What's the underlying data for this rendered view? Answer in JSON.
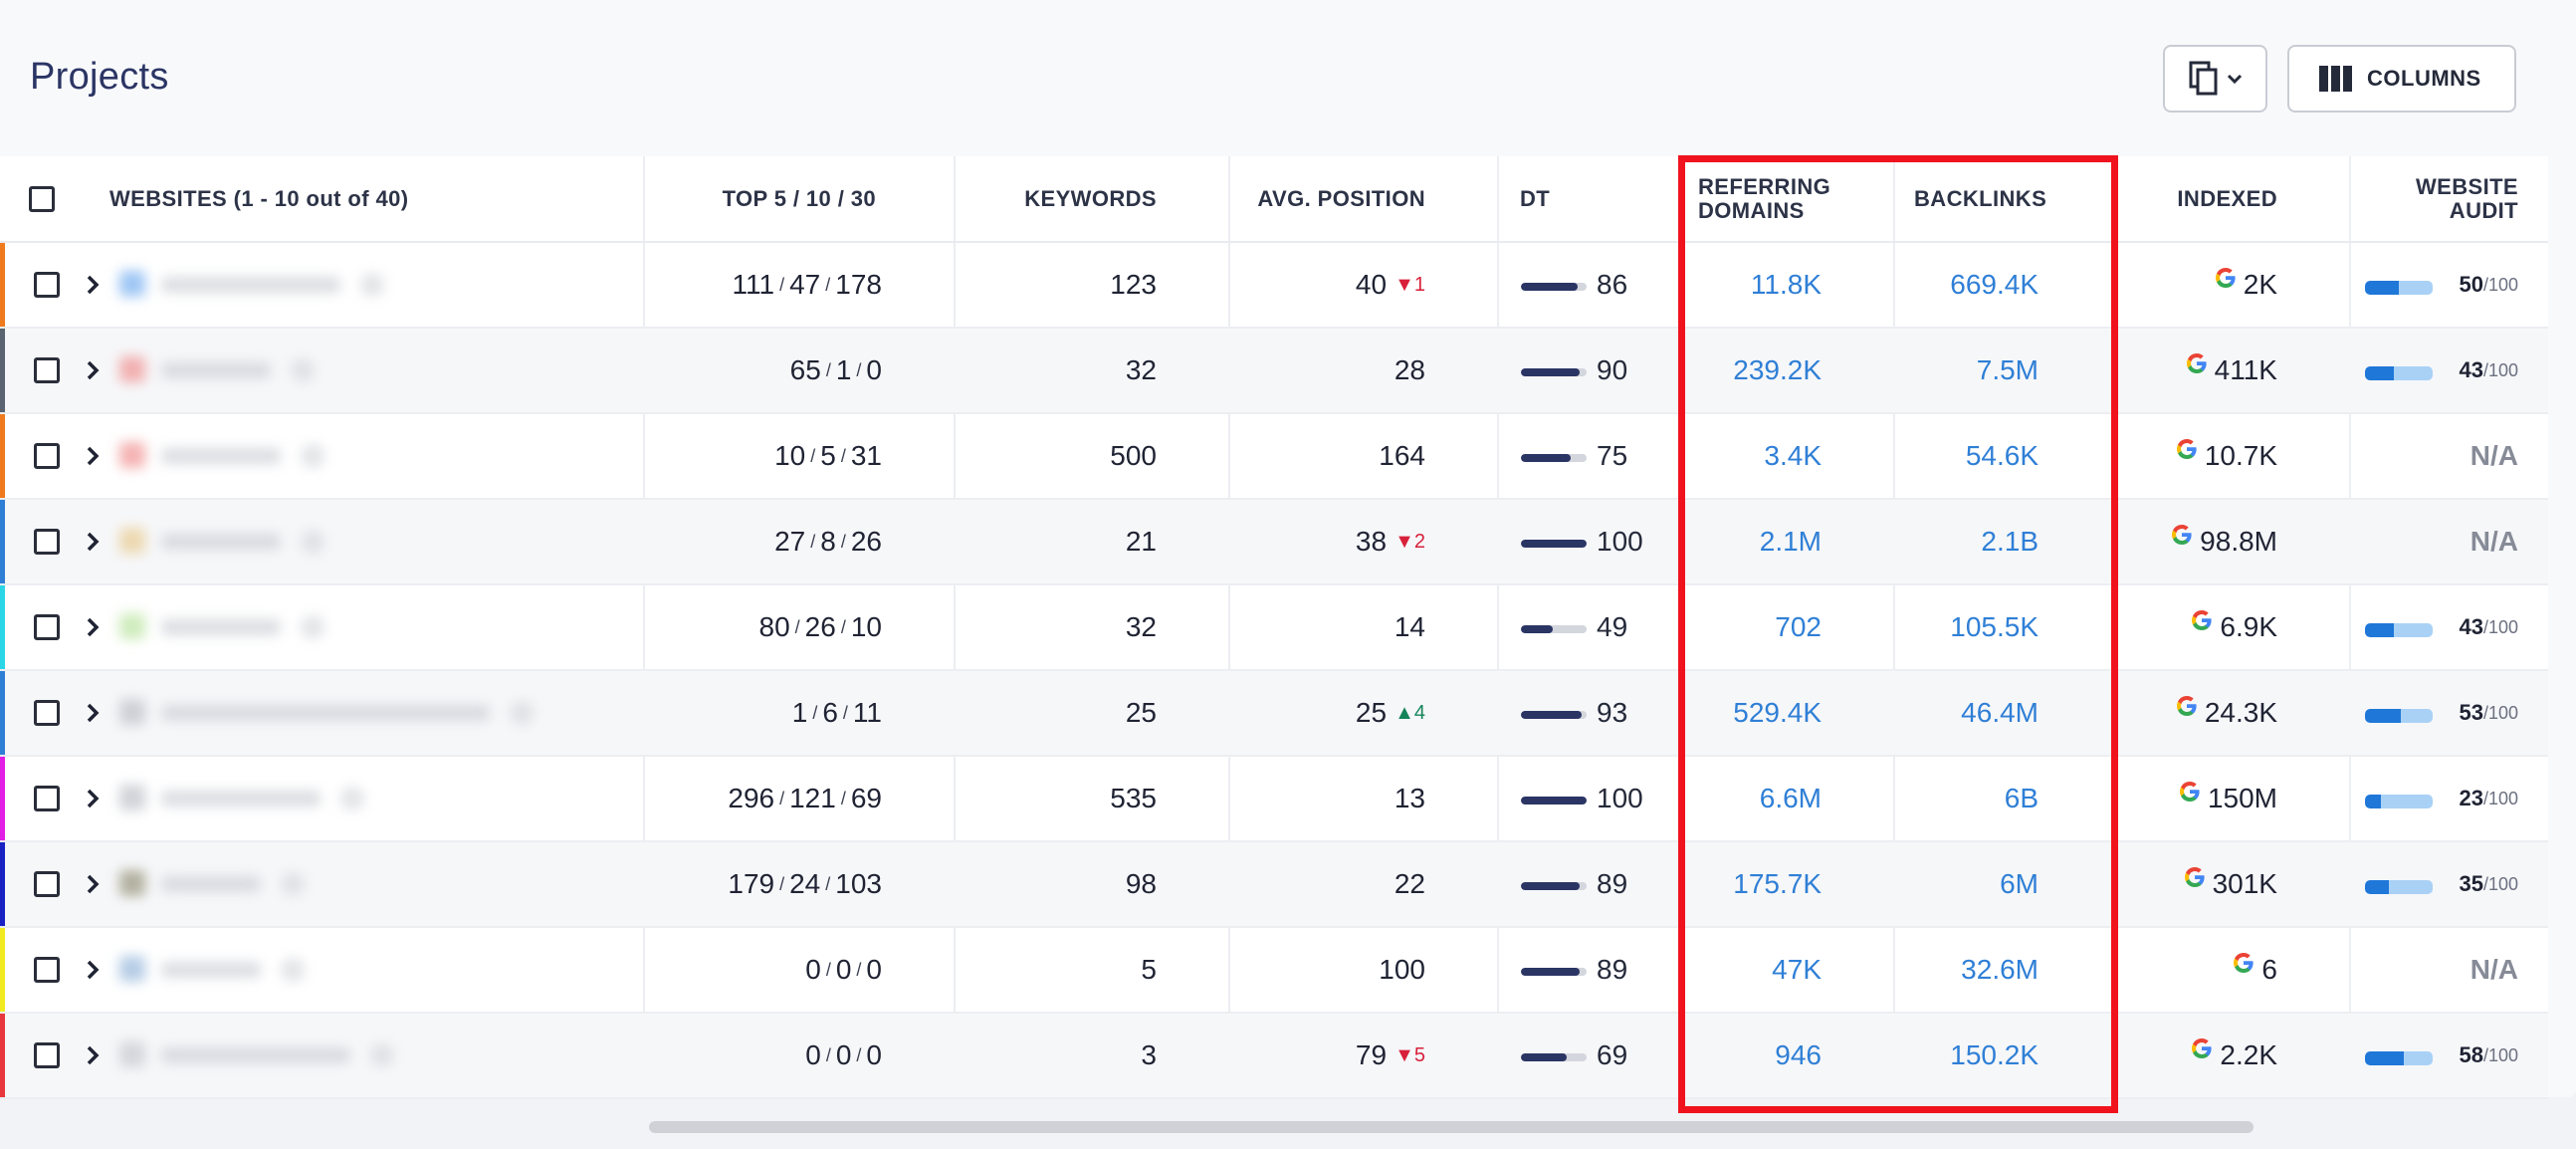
{
  "header": {
    "title": "Projects",
    "columns_label": "COLUMNS"
  },
  "table": {
    "columns": {
      "websites": "WEBSITES (1 - 10 out of 40)",
      "top": "TOP 5 / 10 / 30",
      "keywords": "KEYWORDS",
      "avg_position": "AVG. POSITION",
      "dt": "DT",
      "referring_domains": "REFERRING DOMAINS",
      "backlinks": "BACKLINKS",
      "indexed": "INDEXED",
      "website_audit": "WEBSITE AUDIT"
    },
    "rows": [
      {
        "stripe": "#f07a1e",
        "fav": "#6aa8ef",
        "top5": "111",
        "top10": "47",
        "top30": "178",
        "keywords": "123",
        "avg": "40",
        "delta": "1",
        "delta_dir": "down",
        "dt": 86,
        "ref": "11.8K",
        "back": "669.4K",
        "indexed": "2K",
        "audit": 50,
        "audit_of": "/100"
      },
      {
        "stripe": "#5a6470",
        "fav": "#f08a8a",
        "top5": "65",
        "top10": "1",
        "top30": "0",
        "keywords": "32",
        "avg": "28",
        "delta": "",
        "delta_dir": "",
        "dt": 90,
        "ref": "239.2K",
        "back": "7.5M",
        "indexed": "411K",
        "audit": 43,
        "audit_of": "/100"
      },
      {
        "stripe": "#f07a1e",
        "fav": "#f08a8a",
        "top5": "10",
        "top10": "5",
        "top30": "31",
        "keywords": "500",
        "avg": "164",
        "delta": "",
        "delta_dir": "",
        "dt": 75,
        "ref": "3.4K",
        "back": "54.6K",
        "indexed": "10.7K",
        "audit": null,
        "audit_na": "N/A"
      },
      {
        "stripe": "#2f7fd6",
        "fav": "#e8c98a",
        "top5": "27",
        "top10": "8",
        "top30": "26",
        "keywords": "21",
        "avg": "38",
        "delta": "2",
        "delta_dir": "down",
        "dt": 100,
        "ref": "2.1M",
        "back": "2.1B",
        "indexed": "98.8M",
        "audit": null,
        "audit_na": "N/A"
      },
      {
        "stripe": "#2ad6e6",
        "fav": "#b6e29a",
        "top5": "80",
        "top10": "26",
        "top30": "10",
        "keywords": "32",
        "avg": "14",
        "delta": "",
        "delta_dir": "",
        "dt": 49,
        "ref": "702",
        "back": "105.5K",
        "indexed": "6.9K",
        "audit": 43,
        "audit_of": "/100"
      },
      {
        "stripe": "#2f7fd6",
        "fav": "#b9bcc4",
        "top5": "1",
        "top10": "6",
        "top30": "11",
        "keywords": "25",
        "avg": "25",
        "delta": "4",
        "delta_dir": "up",
        "dt": 93,
        "ref": "529.4K",
        "back": "46.4M",
        "indexed": "24.3K",
        "audit": 53,
        "audit_of": "/100"
      },
      {
        "stripe": "#e21ee6",
        "fav": "#b9bcc4",
        "top5": "296",
        "top10": "121",
        "top30": "69",
        "keywords": "535",
        "avg": "13",
        "delta": "",
        "delta_dir": "",
        "dt": 100,
        "ref": "6.6M",
        "back": "6B",
        "indexed": "150M",
        "audit": 23,
        "audit_of": "/100"
      },
      {
        "stripe": "#1b22c4",
        "fav": "#8e8a6e",
        "top5": "179",
        "top10": "24",
        "top30": "103",
        "keywords": "98",
        "avg": "22",
        "delta": "",
        "delta_dir": "",
        "dt": 89,
        "ref": "175.7K",
        "back": "6M",
        "indexed": "301K",
        "audit": 35,
        "audit_of": "/100"
      },
      {
        "stripe": "#f2ea20",
        "fav": "#8fb2d8",
        "top5": "0",
        "top10": "0",
        "top30": "0",
        "keywords": "5",
        "avg": "100",
        "delta": "",
        "delta_dir": "",
        "dt": 89,
        "ref": "47K",
        "back": "32.6M",
        "indexed": "6",
        "audit": null,
        "audit_na": "N/A"
      },
      {
        "stripe": "#e8383e",
        "fav": "#c4c6cc",
        "top5": "0",
        "top10": "0",
        "top30": "0",
        "keywords": "3",
        "avg": "79",
        "delta": "5",
        "delta_dir": "down",
        "dt": 69,
        "ref": "946",
        "back": "150.2K",
        "indexed": "2.2K",
        "audit": 58,
        "audit_of": "/100"
      }
    ]
  },
  "colors": {
    "accent": "#2f7fd6",
    "highlight": "#f0121d",
    "title": "#2b3564"
  },
  "icons": {
    "copy": "copy-icon",
    "columns": "columns-icon",
    "expand": "chevron-right-icon",
    "google": "google-icon"
  }
}
